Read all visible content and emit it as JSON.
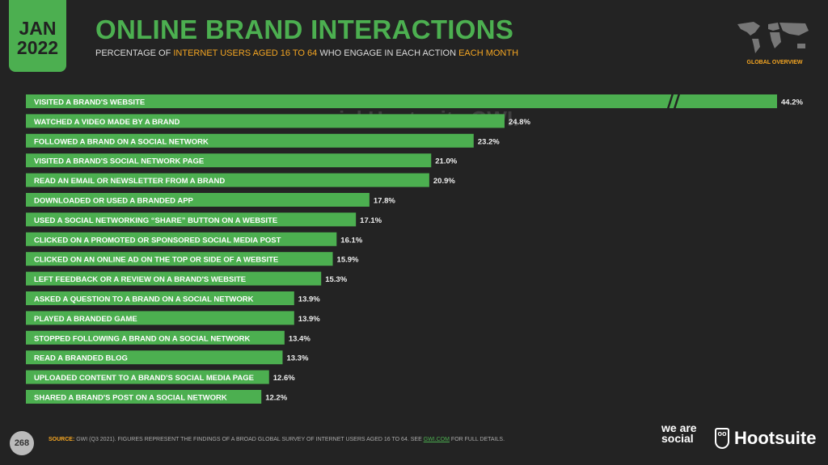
{
  "header": {
    "month": "JAN",
    "year": "2022",
    "title": "ONLINE BRAND INTERACTIONS",
    "subtitle_parts": [
      "PERCENTAGE OF ",
      "INTERNET USERS AGED 16 TO 64",
      " WHO ENGAGE IN EACH ACTION ",
      "EACH MONTH"
    ],
    "map_label": "GLOBAL OVERVIEW"
  },
  "watermark": "we are social   Hootsuite   GWI.",
  "footer": {
    "page": "268",
    "source_label": "SOURCE:",
    "source_text": " GWI (Q3 2021). FIGURES REPRESENT THE FINDINGS OF A BROAD GLOBAL SURVEY OF INTERNET USERS AGED 16 TO 64. SEE ",
    "source_link": "GWI.COM",
    "source_end": " FOR FULL DETAILS.",
    "brand1": "we are social",
    "brand2": "Hootsuite"
  },
  "colors": {
    "bar": "#4caf50",
    "accent": "#f5a623",
    "bg": "#232323"
  },
  "chart_data": {
    "type": "bar",
    "orientation": "horizontal",
    "title": "ONLINE BRAND INTERACTIONS",
    "unit": "%",
    "axis_break_on_first_bar": true,
    "categories": [
      "VISITED A BRAND'S WEBSITE",
      "WATCHED A VIDEO MADE BY A BRAND",
      "FOLLOWED A BRAND ON A SOCIAL NETWORK",
      "VISITED A BRAND'S SOCIAL NETWORK PAGE",
      "READ AN EMAIL OR NEWSLETTER FROM A BRAND",
      "DOWNLOADED OR USED A BRANDED APP",
      "USED A SOCIAL NETWORKING “SHARE” BUTTON ON A WEBSITE",
      "CLICKED ON A PROMOTED OR SPONSORED SOCIAL MEDIA POST",
      "CLICKED ON AN ONLINE AD ON THE TOP OR SIDE OF A WEBSITE",
      "LEFT FEEDBACK OR A REVIEW ON A BRAND'S WEBSITE",
      "ASKED A QUESTION TO A BRAND ON A SOCIAL NETWORK",
      "PLAYED A BRANDED GAME",
      "STOPPED FOLLOWING A BRAND ON A SOCIAL NETWORK",
      "READ A BRANDED BLOG",
      "UPLOADED CONTENT TO A BRAND'S SOCIAL MEDIA PAGE",
      "SHARED A BRAND'S POST ON A SOCIAL NETWORK"
    ],
    "values": [
      44.2,
      24.8,
      23.2,
      21.0,
      20.9,
      17.8,
      17.1,
      16.1,
      15.9,
      15.3,
      13.9,
      13.9,
      13.4,
      13.3,
      12.6,
      12.2
    ],
    "labels": [
      "44.2%",
      "24.8%",
      "23.2%",
      "21.0%",
      "20.9%",
      "17.8%",
      "17.1%",
      "16.1%",
      "15.9%",
      "15.3%",
      "13.9%",
      "13.9%",
      "13.4%",
      "13.3%",
      "12.6%",
      "12.2%"
    ]
  }
}
